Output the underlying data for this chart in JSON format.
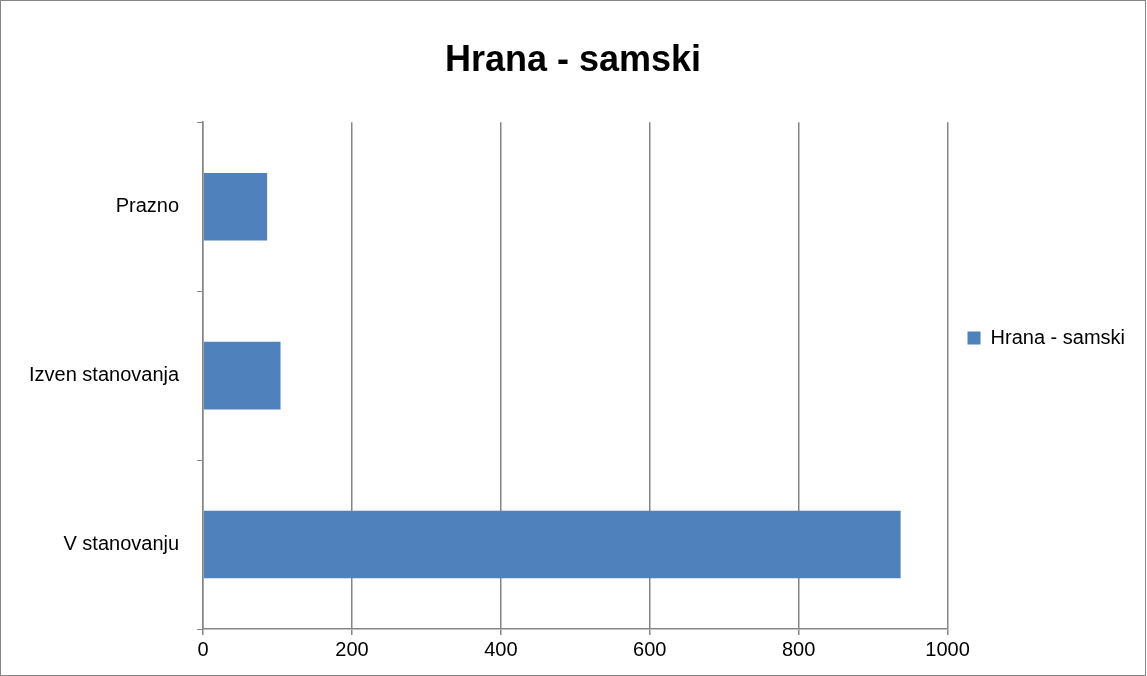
{
  "chart_data": {
    "type": "bar",
    "orientation": "horizontal",
    "title": "Hrana - samski",
    "categories": [
      "Prazno",
      "Izven stanovanja",
      "V stanovanju"
    ],
    "series": [
      {
        "name": "Hrana - samski",
        "color": "#4f81bd",
        "values": [
          86,
          104,
          937
        ]
      }
    ],
    "xlim": [
      0,
      1000
    ],
    "xticks": [
      0,
      200,
      400,
      600,
      800,
      1000
    ],
    "grid": "x",
    "legend": "right"
  }
}
